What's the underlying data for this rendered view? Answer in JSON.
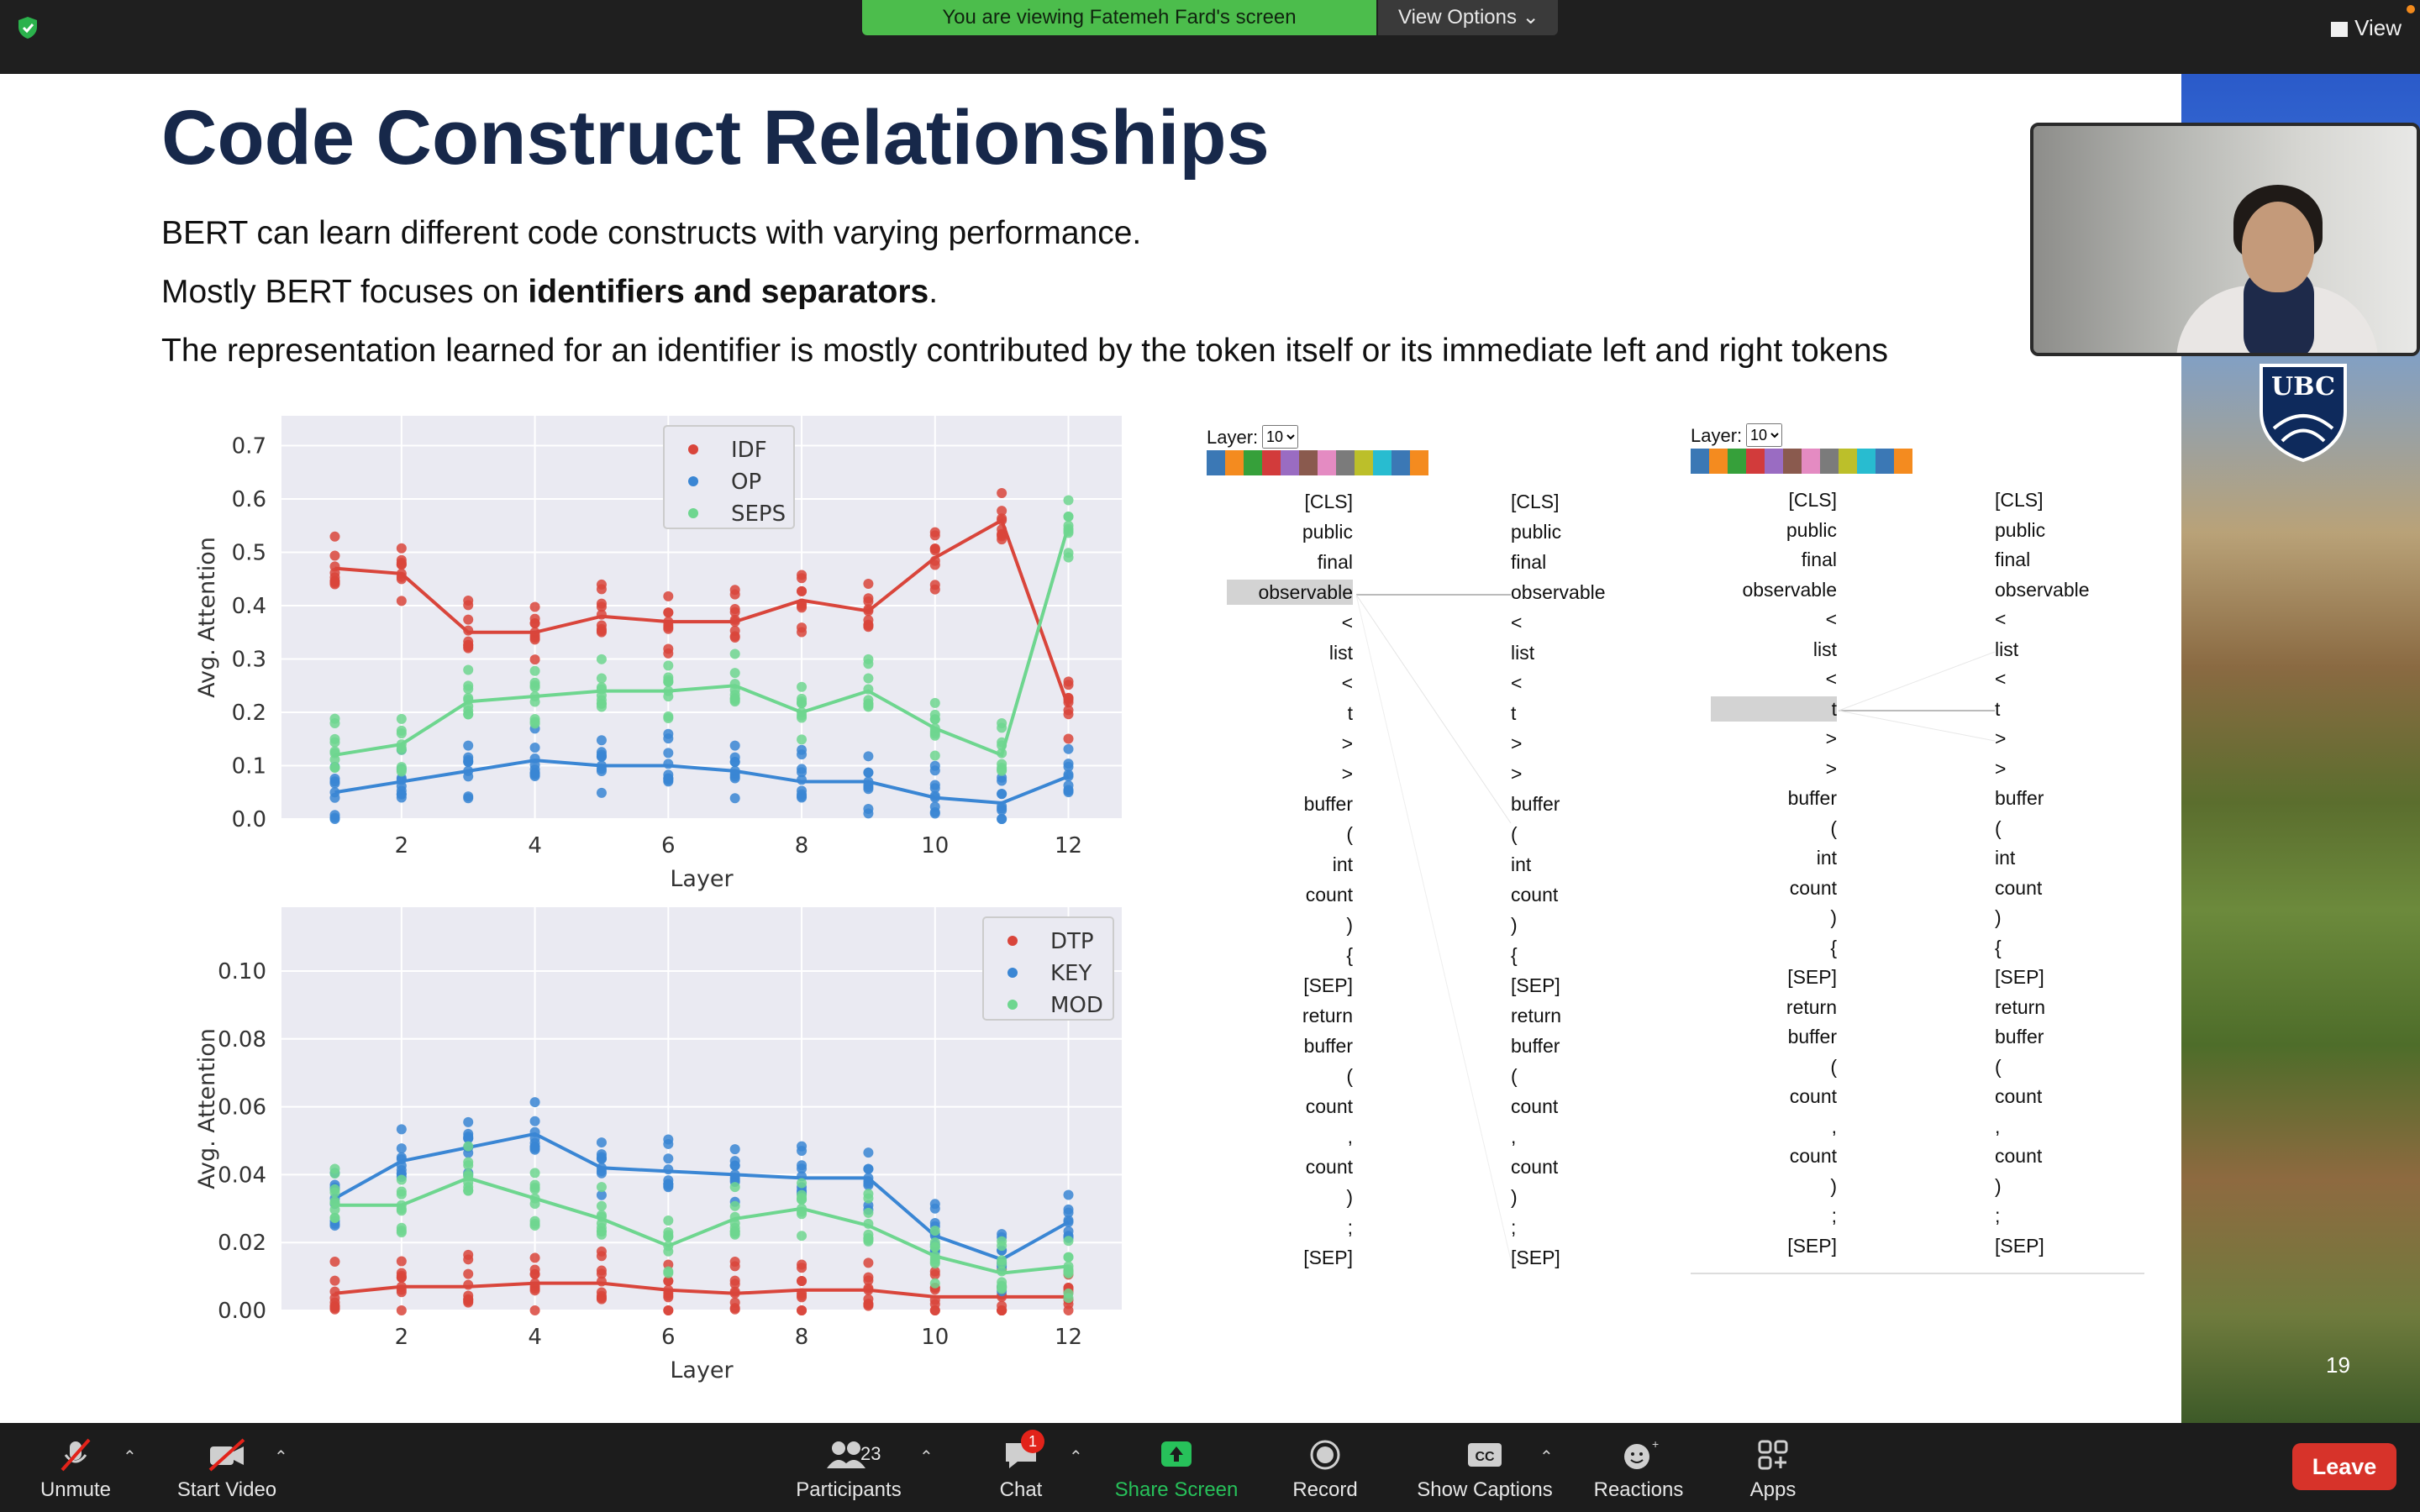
{
  "topbar": {
    "viewing_banner": "You are viewing Fatemeh Fard's screen",
    "view_options": "View Options",
    "view_button": "View"
  },
  "slide": {
    "title": "Code Construct Relationships",
    "bullets": [
      "BERT can learn different code constructs with varying performance.",
      "Mostly BERT focuses on",
      "identifiers and separators",
      ".",
      "The representation learned for an identifier is mostly contributed by the token itself or its immediate left and right tokens"
    ],
    "page_number": "19"
  },
  "chart_data": [
    {
      "type": "scatter",
      "xlabel": "Layer",
      "ylabel": "Avg. Attention",
      "ylim": [
        0.0,
        0.7
      ],
      "x_ticks": [
        "2",
        "4",
        "6",
        "8",
        "10",
        "12"
      ],
      "y_ticks": [
        "0.0",
        "0.1",
        "0.2",
        "0.3",
        "0.4",
        "0.5",
        "0.6",
        "0.7"
      ],
      "x": [
        1,
        2,
        3,
        4,
        5,
        6,
        7,
        8,
        9,
        10,
        11,
        12
      ],
      "legend_placement": "top-center",
      "series": [
        {
          "name": "IDF",
          "color": "#d9453b",
          "values": [
            0.47,
            0.46,
            0.35,
            0.35,
            0.38,
            0.37,
            0.37,
            0.41,
            0.39,
            0.49,
            0.56,
            0.21
          ]
        },
        {
          "name": "OP",
          "color": "#3a86d4",
          "values": [
            0.05,
            0.07,
            0.09,
            0.11,
            0.1,
            0.1,
            0.09,
            0.07,
            0.07,
            0.04,
            0.03,
            0.08
          ]
        },
        {
          "name": "SEPS",
          "color": "#6ed68f",
          "values": [
            0.12,
            0.14,
            0.22,
            0.23,
            0.24,
            0.24,
            0.25,
            0.2,
            0.24,
            0.17,
            0.12,
            0.55
          ]
        }
      ]
    },
    {
      "type": "scatter",
      "xlabel": "Layer",
      "ylabel": "Avg. Attention",
      "ylim": [
        0.0,
        0.11
      ],
      "x_ticks": [
        "2",
        "4",
        "6",
        "8",
        "10",
        "12"
      ],
      "y_ticks": [
        "0.00",
        "0.02",
        "0.04",
        "0.06",
        "0.08",
        "0.10"
      ],
      "x": [
        1,
        2,
        3,
        4,
        5,
        6,
        7,
        8,
        9,
        10,
        11,
        12
      ],
      "legend_placement": "top-right",
      "series": [
        {
          "name": "DTP",
          "color": "#d9453b",
          "values": [
            0.005,
            0.007,
            0.007,
            0.008,
            0.008,
            0.006,
            0.005,
            0.006,
            0.006,
            0.004,
            0.004,
            0.004
          ]
        },
        {
          "name": "KEY",
          "color": "#3a86d4",
          "values": [
            0.033,
            0.044,
            0.048,
            0.052,
            0.042,
            0.041,
            0.04,
            0.039,
            0.039,
            0.022,
            0.015,
            0.026
          ]
        },
        {
          "name": "MOD",
          "color": "#6ed68f",
          "values": [
            0.031,
            0.031,
            0.039,
            0.033,
            0.027,
            0.019,
            0.027,
            0.03,
            0.025,
            0.016,
            0.011,
            0.013
          ]
        }
      ]
    }
  ],
  "attention_left": {
    "layer_label": "Layer:",
    "layer_value": "10",
    "highlight": "observable",
    "tokens": [
      "[CLS]",
      "public",
      "final",
      "observable",
      "<",
      "list",
      "<",
      "t",
      ">",
      ">",
      "buffer",
      "(",
      "int",
      "count",
      ")",
      "{",
      "[SEP]",
      "return",
      "buffer",
      "(",
      "count",
      ",",
      "count",
      ")",
      ";",
      "[SEP]"
    ],
    "swatches": [
      "#3b78b5",
      "#f48b1f",
      "#36a03a",
      "#d23b3b",
      "#9a6cc2",
      "#8a5a4e",
      "#e48bc2",
      "#7b7b7b",
      "#bcbf2a",
      "#28bcd0",
      "#3b78b5",
      "#f48b1f"
    ]
  },
  "attention_right": {
    "layer_label": "Layer:",
    "layer_value": "10",
    "highlight": "t"
  },
  "toolbar": {
    "unmute": "Unmute",
    "start_video": "Start Video",
    "participants": "Participants",
    "participants_count": "23",
    "chat": "Chat",
    "chat_badge": "1",
    "share_screen": "Share Screen",
    "record": "Record",
    "show_captions": "Show Captions",
    "captions_icon_text": "CC",
    "reactions": "Reactions",
    "apps": "Apps",
    "leave": "Leave"
  }
}
